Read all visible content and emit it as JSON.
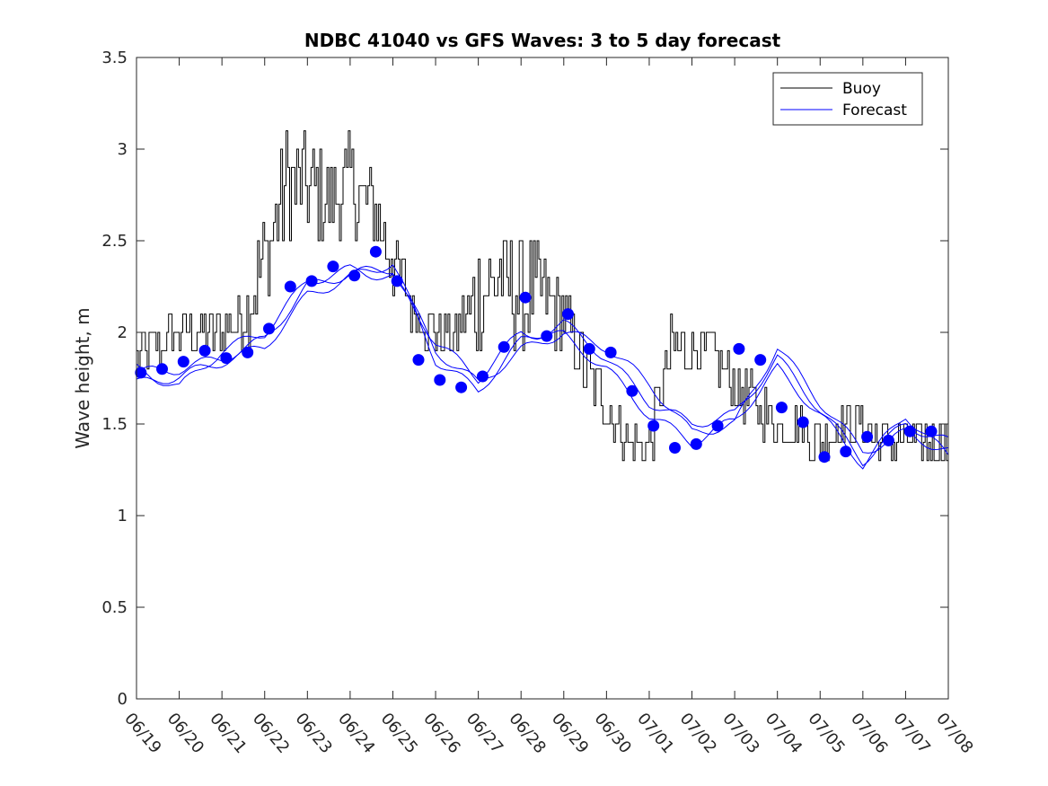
{
  "chart_data": {
    "type": "line",
    "title": "NDBC 41040 vs GFS Waves: 3 to 5 day forecast",
    "xlabel": "",
    "ylabel": "Wave height, m",
    "x_tick_labels": [
      "06/19",
      "06/20",
      "06/21",
      "06/22",
      "06/23",
      "06/24",
      "06/25",
      "06/26",
      "06/27",
      "06/28",
      "06/29",
      "06/30",
      "07/01",
      "07/02",
      "07/03",
      "07/04",
      "07/05",
      "07/06",
      "07/07",
      "07/08"
    ],
    "y_tick_labels": [
      "0",
      "0.5",
      "1",
      "1.5",
      "2",
      "2.5",
      "3",
      "3.5"
    ],
    "xlim_days": [
      0,
      19
    ],
    "ylim": [
      0,
      3.5
    ],
    "grid": false,
    "legend": {
      "placement": "top-right",
      "entries": [
        {
          "label": "Buoy",
          "color": "#000000"
        },
        {
          "label": "Forecast",
          "color": "#0000ff"
        }
      ]
    },
    "colors": {
      "buoy": "#000000",
      "forecast": "#0000ff"
    },
    "buoy": {
      "x": [
        0,
        0.5,
        1,
        1.5,
        2,
        2.5,
        3,
        3.5,
        4,
        4.5,
        5,
        5.5,
        6,
        6.5,
        7,
        7.5,
        8,
        8.5,
        9,
        9.5,
        10,
        10.5,
        11,
        11.5,
        12,
        12.5,
        13,
        13.5,
        14,
        14.5,
        15,
        15.5,
        16,
        16.5,
        17,
        17.5,
        18,
        18.5,
        19
      ],
      "y": [
        1.9,
        1.9,
        2.0,
        2.0,
        2.0,
        2.1,
        2.4,
        2.8,
        2.8,
        2.7,
        2.8,
        2.7,
        2.4,
        2.1,
        2.0,
        2.0,
        2.2,
        2.3,
        2.2,
        2.2,
        2.1,
        1.8,
        1.6,
        1.4,
        1.4,
        1.9,
        1.9,
        1.9,
        1.7,
        1.6,
        1.5,
        1.5,
        1.4,
        1.5,
        1.5,
        1.4,
        1.4,
        1.4,
        1.4
      ],
      "amplitude": [
        0.1,
        0.1,
        0.1,
        0.1,
        0.1,
        0.15,
        0.2,
        0.25,
        0.2,
        0.2,
        0.2,
        0.2,
        0.15,
        0.1,
        0.1,
        0.1,
        0.25,
        0.2,
        0.25,
        0.2,
        0.15,
        0.15,
        0.1,
        0.1,
        0.1,
        0.15,
        0.1,
        0.1,
        0.1,
        0.1,
        0.1,
        0.1,
        0.1,
        0.1,
        0.1,
        0.1,
        0.1,
        0.1,
        0.1
      ]
    },
    "forecast_markers": {
      "x": [
        0.1,
        0.6,
        1.1,
        1.6,
        2.1,
        2.6,
        3.1,
        3.6,
        4.1,
        4.6,
        5.1,
        5.6,
        6.1,
        6.6,
        7.1,
        7.6,
        8.1,
        8.6,
        9.1,
        9.6,
        10.1,
        10.6,
        11.1,
        11.6,
        12.1,
        12.6,
        13.1,
        13.6,
        14.1,
        14.6,
        15.1,
        15.6,
        16.1,
        16.6,
        17.1,
        17.6,
        18.1,
        18.6
      ],
      "y": [
        1.78,
        1.8,
        1.84,
        1.9,
        1.86,
        1.89,
        2.02,
        2.25,
        2.28,
        2.36,
        2.31,
        2.44,
        2.28,
        1.85,
        1.74,
        1.7,
        1.76,
        1.92,
        2.19,
        1.98,
        2.1,
        1.91,
        1.89,
        1.68,
        1.49,
        1.37,
        1.39,
        1.49,
        1.91,
        1.85,
        1.59,
        1.51,
        1.32,
        1.35,
        1.43,
        1.41,
        1.46,
        1.46
      ]
    },
    "forecast_runs": [
      {
        "x": [
          0,
          1,
          2,
          3,
          4,
          5,
          6,
          7,
          8,
          9,
          10,
          11,
          12,
          13,
          14,
          15,
          16,
          17,
          18,
          19
        ],
        "y": [
          1.78,
          1.8,
          1.86,
          1.96,
          2.25,
          2.32,
          2.35,
          1.9,
          1.72,
          1.9,
          2.0,
          1.92,
          1.72,
          1.45,
          1.5,
          1.92,
          1.62,
          1.35,
          1.45,
          1.35
        ]
      },
      {
        "x": [
          0,
          1,
          2,
          3,
          4,
          5,
          6,
          7,
          8,
          9,
          10,
          11,
          12,
          13,
          14,
          15,
          16,
          17,
          18,
          19
        ],
        "y": [
          1.72,
          1.76,
          1.84,
          1.92,
          2.2,
          2.3,
          2.38,
          1.85,
          1.68,
          1.95,
          2.05,
          1.86,
          1.62,
          1.5,
          1.55,
          1.86,
          1.58,
          1.3,
          1.5,
          1.4
        ]
      },
      {
        "x": [
          0,
          1,
          2,
          3,
          4,
          5,
          6,
          7,
          8,
          9,
          10,
          11,
          12,
          13,
          14,
          15,
          16,
          17,
          18,
          19
        ],
        "y": [
          1.8,
          1.7,
          1.9,
          2.0,
          2.28,
          2.34,
          2.3,
          1.95,
          1.75,
          2.0,
          1.98,
          1.8,
          1.55,
          1.4,
          1.52,
          1.8,
          1.55,
          1.28,
          1.55,
          1.32
        ]
      }
    ]
  }
}
